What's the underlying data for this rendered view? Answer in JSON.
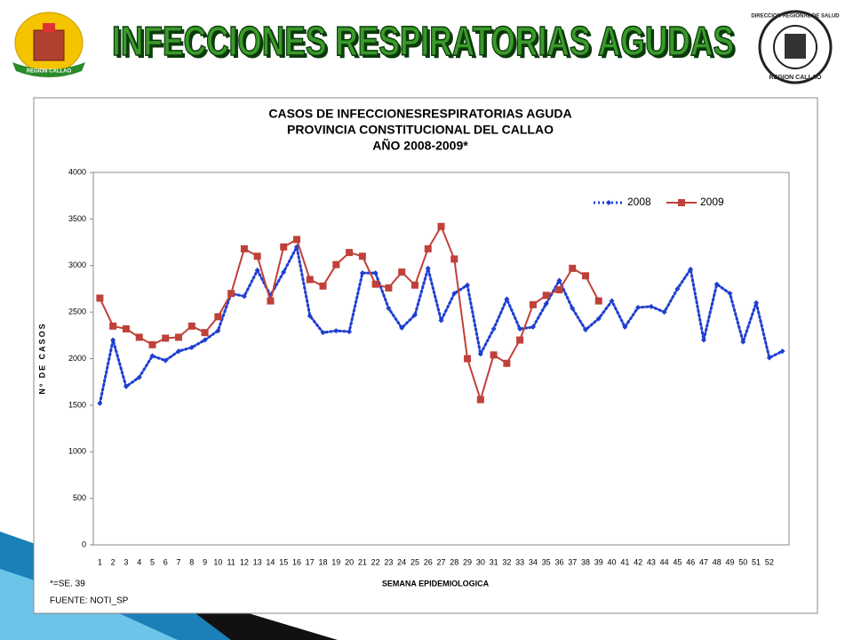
{
  "header": {
    "title": "INFECCIONES RESPIRATORIAS AGUDAS",
    "left_logo_text": "REGION CALLAO",
    "right_logo_text": [
      "DIRECCION REGIONAL DE SALUD",
      "REGION CALLAO"
    ]
  },
  "chart_data": {
    "type": "line",
    "title": [
      "CASOS DE INFECCIONESRESPIRATORIAS AGUDA",
      "PROVINCIA CONSTITUCIONAL DEL CALLAO",
      "AÑO 2008-2009*"
    ],
    "x_label": "SEMANA EPIDEMIOLOGICA",
    "y_label": "Nº DE CASOS",
    "categories": [
      "1",
      "2",
      "3",
      "4",
      "5",
      "6",
      "7",
      "8",
      "9",
      "10",
      "11",
      "12",
      "13",
      "14",
      "15",
      "16",
      "17",
      "18",
      "19",
      "20",
      "21",
      "22",
      "23",
      "24",
      "25",
      "26",
      "27",
      "28",
      "29",
      "30",
      "31",
      "32",
      "33",
      "34",
      "35",
      "36",
      "37",
      "38",
      "39",
      "40",
      "41",
      "42",
      "43",
      "44",
      "45",
      "46",
      "47",
      "48",
      "49",
      "50",
      "51",
      "52",
      null
    ],
    "series": [
      {
        "name": "2008",
        "color": "#1f3fd0",
        "style": "dotted",
        "values": [
          1520,
          2200,
          1700,
          1800,
          2030,
          1980,
          2080,
          2120,
          2200,
          2300,
          2700,
          2670,
          2950,
          2680,
          2930,
          3200,
          2460,
          2280,
          2300,
          2290,
          2920,
          2920,
          2540,
          2330,
          2470,
          2970,
          2410,
          2700,
          2790,
          2050,
          2320,
          2640,
          2320,
          2340,
          2590,
          2840,
          2540,
          2310,
          2430,
          2620,
          2340,
          2550,
          2560,
          2500,
          2750,
          2960,
          2200,
          2800,
          2700,
          2180,
          2600,
          2010,
          2080
        ]
      },
      {
        "name": "2009",
        "color": "#c0403a",
        "style": "solid",
        "values": [
          2650,
          2350,
          2320,
          2230,
          2150,
          2220,
          2230,
          2350,
          2280,
          2450,
          2700,
          3180,
          3100,
          2620,
          3200,
          3280,
          2850,
          2780,
          3010,
          3140,
          3100,
          2800,
          2760,
          2930,
          2790,
          3180,
          3420,
          3070,
          2000,
          1560,
          2040,
          1950,
          2200,
          2580,
          2680,
          2740,
          2970,
          2890,
          2620,
          null,
          null,
          null,
          null,
          null,
          null,
          null,
          null,
          null,
          null,
          null,
          null,
          null,
          null
        ]
      }
    ],
    "ylim": [
      0,
      4000
    ],
    "yticks": [
      0,
      500,
      1000,
      1500,
      2000,
      2500,
      3000,
      3500,
      4000
    ],
    "grid": false,
    "legend": "top-right"
  },
  "notes": [
    "*=SE. 39",
    "FUENTE: NOTI_SP"
  ]
}
